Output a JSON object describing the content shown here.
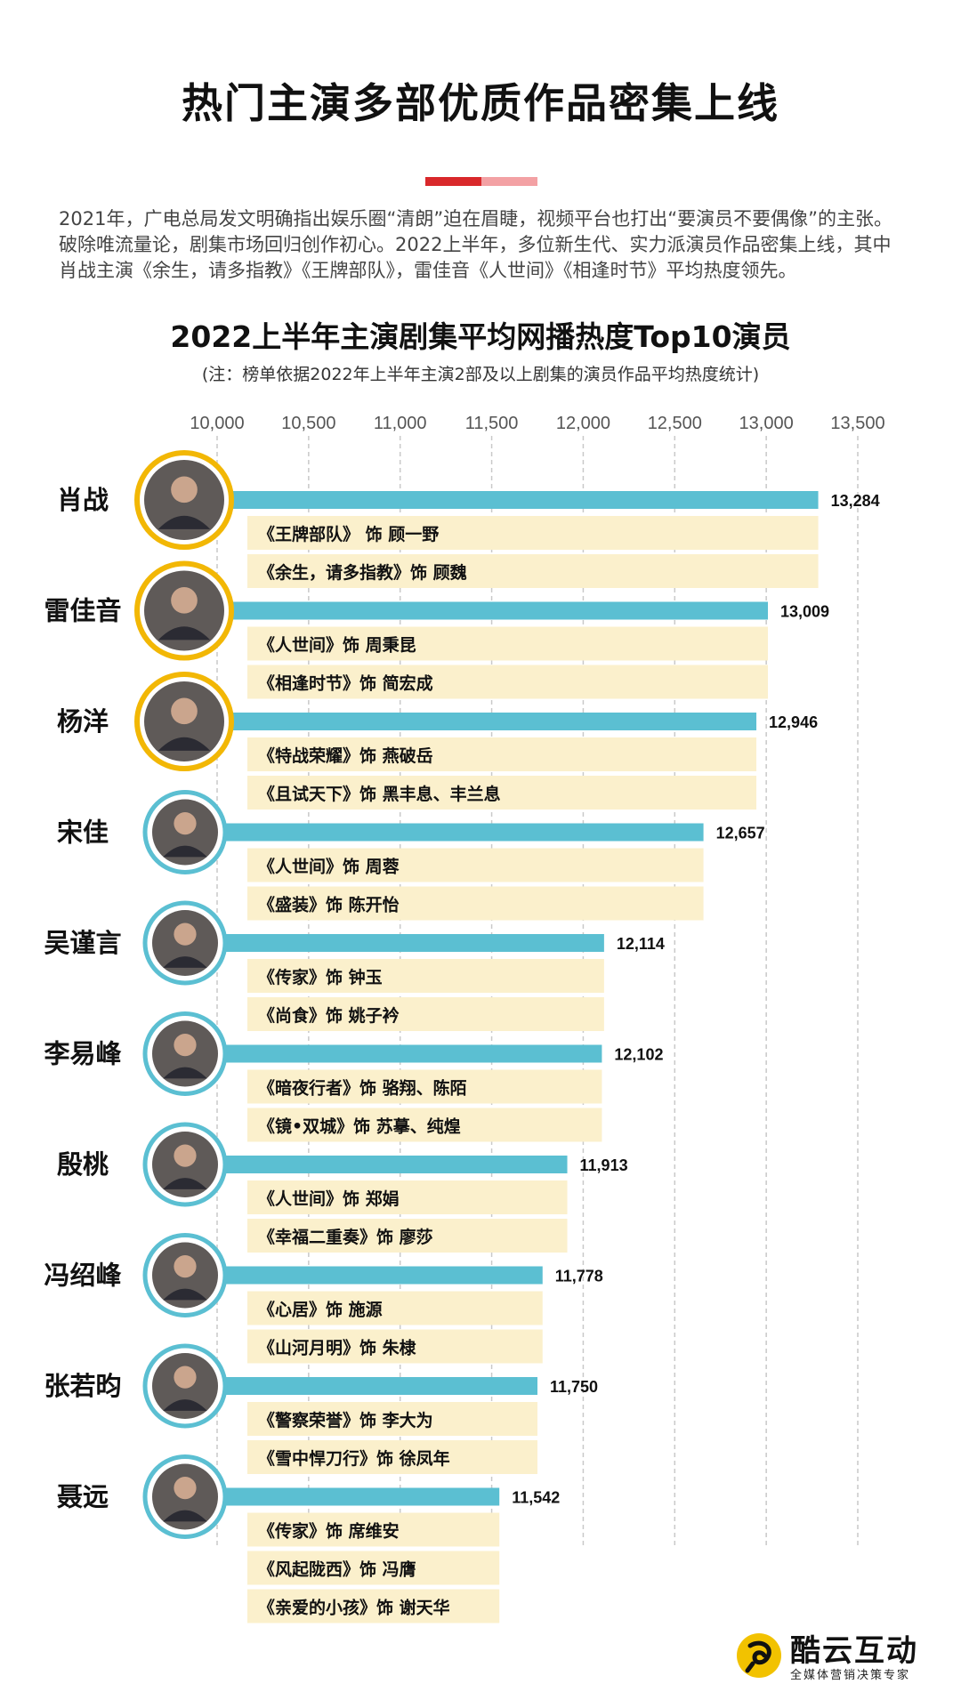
{
  "header": {
    "title": "热门主演多部优质作品密集上线",
    "intro": "2021年，广电总局发文明确指出娱乐圈“清朗”迫在眉睫，视频平台也打出“要演员不要偶像”的主张。破除唯流量论，剧集市场回归创作初心。2022上半年，多位新生代、实力派演员作品密集上线，其中肖战主演《余生，请多指教》《王牌部队》，雷佳音《人世间》《相逢时节》平均热度领先。",
    "accent_colors": [
      "#d9282b",
      "#f3a1a4"
    ]
  },
  "chart_data": {
    "type": "bar",
    "orientation": "horizontal",
    "title": "2022上半年主演剧集平均网播热度Top10演员",
    "subtitle": "(注：榜单依据2022年上半年主演2部及以上剧集的演员作品平均热度统计)",
    "xlim": [
      10000,
      13500
    ],
    "xticks": [
      10000,
      10500,
      11000,
      11500,
      12000,
      12500,
      13000,
      13500
    ],
    "xtick_labels": [
      "10,000",
      "10,500",
      "11,000",
      "11,500",
      "12,000",
      "12,500",
      "13,000",
      "13,500"
    ],
    "grid": "vertical dashed",
    "bar_color": "#5bbfd2",
    "works_color": "#fbf0cc",
    "categories": [
      "肖战",
      "雷佳音",
      "杨洋",
      "宋佳",
      "吴谨言",
      "李易峰",
      "殷桃",
      "冯绍峰",
      "张若昀",
      "聂远"
    ],
    "values": [
      13284,
      13009,
      12946,
      12657,
      12114,
      12102,
      11913,
      11778,
      11750,
      11542
    ],
    "value_labels": [
      "13,284",
      "13,009",
      "12,946",
      "12,657",
      "12,114",
      "12,102",
      "11,913",
      "11,778",
      "11,750",
      "11,542"
    ],
    "highlight_top": 3,
    "highlight_ring_color": "#f2b705",
    "ring_color": "#5bbfd2",
    "works": [
      [
        "《王牌部队》 饰 顾一野",
        "《余生，请多指教》饰 顾魏"
      ],
      [
        "《人世间》饰 周秉昆",
        "《相逢时节》饰 简宏成"
      ],
      [
        "《特战荣耀》饰 燕破岳",
        "《且试天下》饰  黑丰息、丰兰息"
      ],
      [
        "《人世间》饰 周蓉",
        "《盛装》饰 陈开怡"
      ],
      [
        "《传家》饰 钟玉",
        "《尚食》饰 姚子衿"
      ],
      [
        "《暗夜行者》饰 骆翔、陈陌",
        "《镜•双城》饰 苏摹、纯煌"
      ],
      [
        "《人世间》饰 郑娟",
        "《幸福二重奏》饰 廖莎"
      ],
      [
        "《心居》饰 施源",
        "《山河月明》饰 朱棣"
      ],
      [
        "《警察荣誉》饰 李大为",
        "《雪中悍刀行》饰 徐凤年"
      ],
      [
        "《传家》饰 席维安",
        "《风起陇西》饰 冯膺",
        "《亲爱的小孩》饰 谢天华"
      ]
    ]
  },
  "footer": {
    "logo_name": "酷云互动",
    "logo_slogan": "全媒体营销决策专家",
    "logo_icon": "kuyun-logo-icon"
  }
}
